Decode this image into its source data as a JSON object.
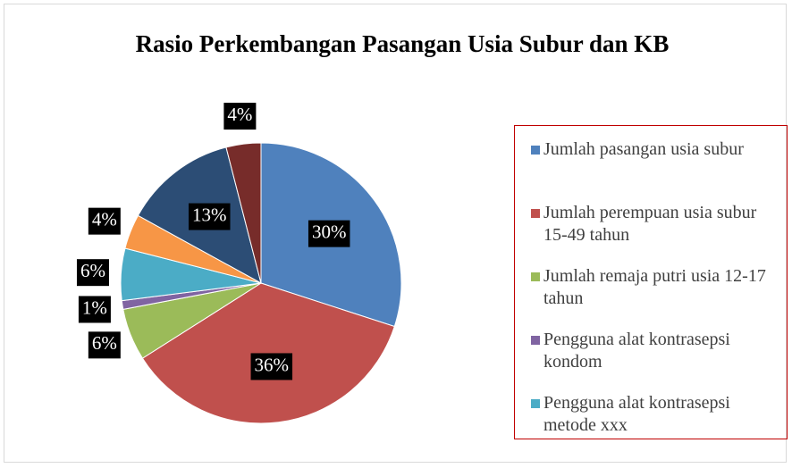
{
  "chart_data": {
    "type": "pie",
    "title": "Rasio Perkembangan Pasangan Usia Subur dan KB",
    "categories": [
      "Jumlah pasangan usia subur",
      "Jumlah perempuan usia subur 15-49 tahun",
      "Jumlah remaja putri usia 12-17 tahun",
      "Pengguna alat kontrasepsi kondom",
      "Pengguna alat kontrasepsi metode xxx",
      null,
      null,
      null
    ],
    "values": [
      30,
      36,
      6,
      1,
      6,
      4,
      13,
      4
    ],
    "value_labels": [
      "30%",
      "36%",
      "6%",
      "1%",
      "6%",
      "4%",
      "13%",
      "4%"
    ],
    "colors": [
      "#4f81bd",
      "#c0504d",
      "#9bbb59",
      "#8064a2",
      "#4bacc6",
      "#f79646",
      "#2c4d75",
      "#772c2a"
    ],
    "legend": "right"
  }
}
